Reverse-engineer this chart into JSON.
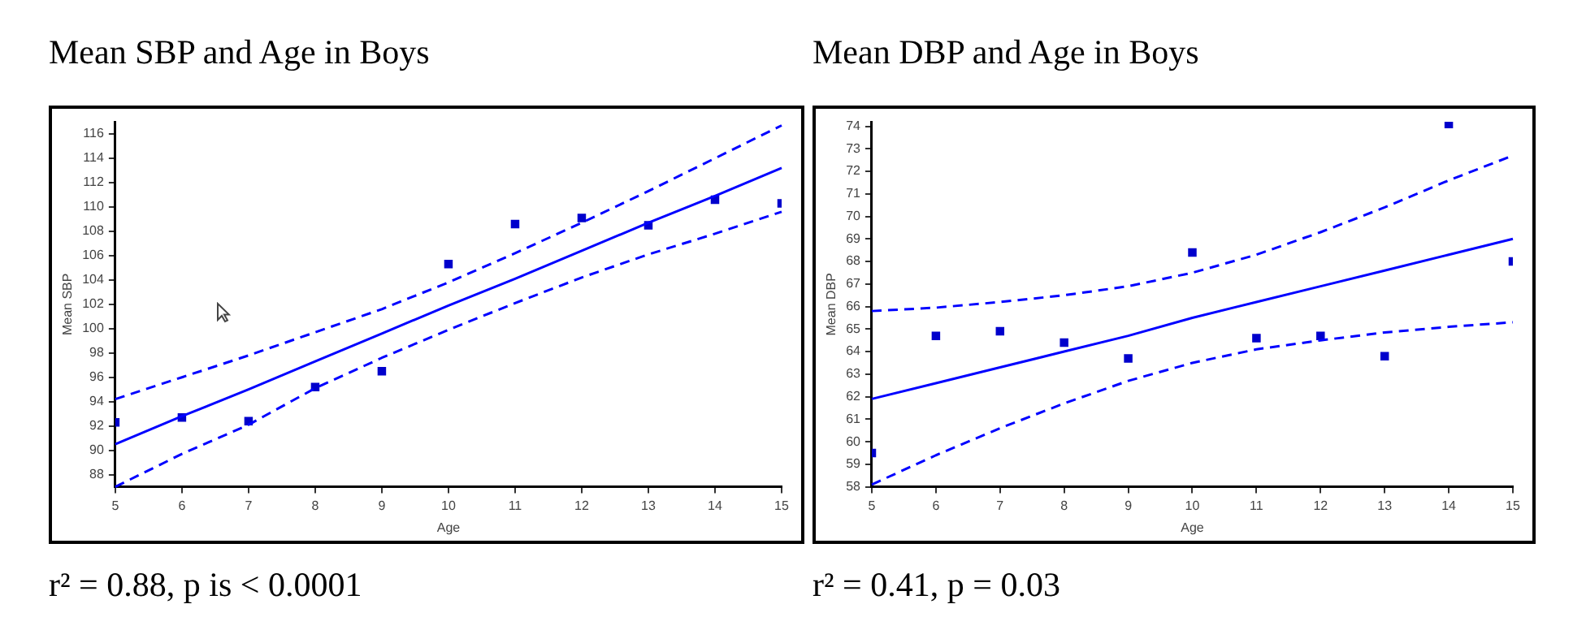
{
  "chart_data": [
    {
      "type": "scatter",
      "title": "Mean SBP and Age in Boys",
      "xlabel": "Age",
      "ylabel": "Mean SBP",
      "grid": false,
      "x": [
        5,
        6,
        7,
        8,
        9,
        10,
        11,
        12,
        13,
        14,
        15
      ],
      "xlim": [
        5,
        15
      ],
      "xticks": [
        5,
        6,
        7,
        8,
        9,
        10,
        11,
        12,
        13,
        14,
        15
      ],
      "ylim": [
        87,
        117
      ],
      "yticks": [
        88,
        90,
        92,
        94,
        96,
        98,
        100,
        102,
        104,
        106,
        108,
        110,
        112,
        114,
        116
      ],
      "series": [
        {
          "type": "scatter",
          "marker": "square",
          "color": "#0000cc",
          "values": [
            92.3,
            92.7,
            92.4,
            95.2,
            96.5,
            105.3,
            108.6,
            109.1,
            108.5,
            110.6,
            110.3
          ]
        },
        {
          "type": "line",
          "color": "#0000ff",
          "values": [
            90.5,
            92.8,
            95.0,
            97.3,
            99.6,
            101.9,
            104.1,
            106.4,
            108.7,
            110.9,
            113.2
          ]
        },
        {
          "type": "line",
          "color": "#0000ff",
          "line_style": "dashed",
          "values": [
            94.2,
            96.0,
            97.8,
            99.7,
            101.6,
            103.8,
            106.2,
            108.7,
            111.3,
            114.0,
            116.7
          ]
        },
        {
          "type": "line",
          "color": "#0000ff",
          "line_style": "dashed",
          "values": [
            87.0,
            89.7,
            92.1,
            95.1,
            97.6,
            99.9,
            102.1,
            104.2,
            106.1,
            107.8,
            109.6
          ]
        }
      ],
      "annotations": [
        "r² = 0.88, p is < 0.0001"
      ]
    },
    {
      "type": "scatter",
      "title": "Mean DBP and Age in Boys",
      "xlabel": "Age",
      "ylabel": "Mean DBP",
      "grid": false,
      "x": [
        5,
        6,
        7,
        8,
        9,
        10,
        11,
        12,
        13,
        14,
        15
      ],
      "xlim": [
        5,
        15
      ],
      "xticks": [
        5,
        6,
        7,
        8,
        9,
        10,
        11,
        12,
        13,
        14,
        15
      ],
      "ylim": [
        58,
        74.2
      ],
      "yticks": [
        58,
        59,
        60,
        61,
        62,
        63,
        64,
        65,
        66,
        67,
        68,
        69,
        70,
        71,
        72,
        73,
        74
      ],
      "series": [
        {
          "type": "scatter",
          "marker": "square",
          "color": "#0000cc",
          "values": [
            59.5,
            64.7,
            64.9,
            64.4,
            63.7,
            68.4,
            64.6,
            64.7,
            63.8,
            74.1,
            68.0
          ]
        },
        {
          "type": "line",
          "color": "#0000ff",
          "values": [
            61.9,
            62.6,
            63.3,
            64.0,
            64.7,
            65.5,
            66.2,
            66.9,
            67.6,
            68.3,
            69.0
          ]
        },
        {
          "type": "line",
          "color": "#0000ff",
          "line_style": "dashed",
          "values": [
            65.8,
            65.95,
            66.2,
            66.5,
            66.9,
            67.5,
            68.3,
            69.3,
            70.4,
            71.6,
            72.7
          ]
        },
        {
          "type": "line",
          "color": "#0000ff",
          "line_style": "dashed",
          "values": [
            58.1,
            59.4,
            60.6,
            61.7,
            62.7,
            63.5,
            64.1,
            64.5,
            64.85,
            65.1,
            65.3
          ]
        }
      ],
      "annotations": [
        "r² = 0.41, p = 0.03"
      ]
    }
  ]
}
